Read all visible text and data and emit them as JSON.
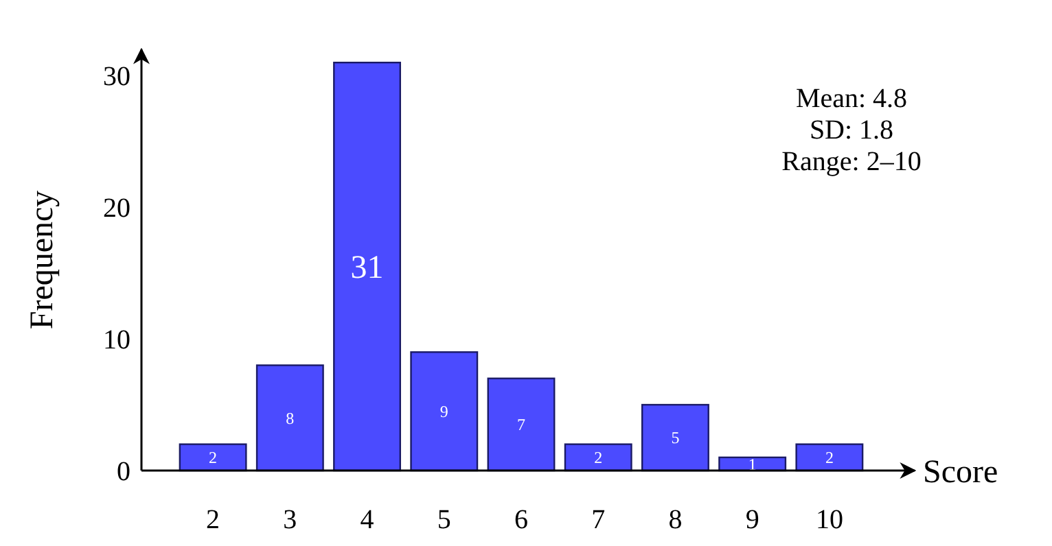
{
  "chart_data": {
    "type": "bar",
    "xlabel": "Score",
    "ylabel": "Frequency",
    "categories": [
      "2",
      "3",
      "4",
      "5",
      "6",
      "7",
      "8",
      "9",
      "10"
    ],
    "values": [
      2,
      8,
      31,
      9,
      7,
      2,
      5,
      1,
      2
    ],
    "color": "#4b4bff",
    "data_labels": true,
    "ylim": [
      0,
      32
    ],
    "yticks": [
      0,
      10,
      20,
      30
    ],
    "grid": false,
    "annotations": [
      "Mean: 4.8",
      "SD: 1.8",
      "Range: 2–10"
    ]
  }
}
